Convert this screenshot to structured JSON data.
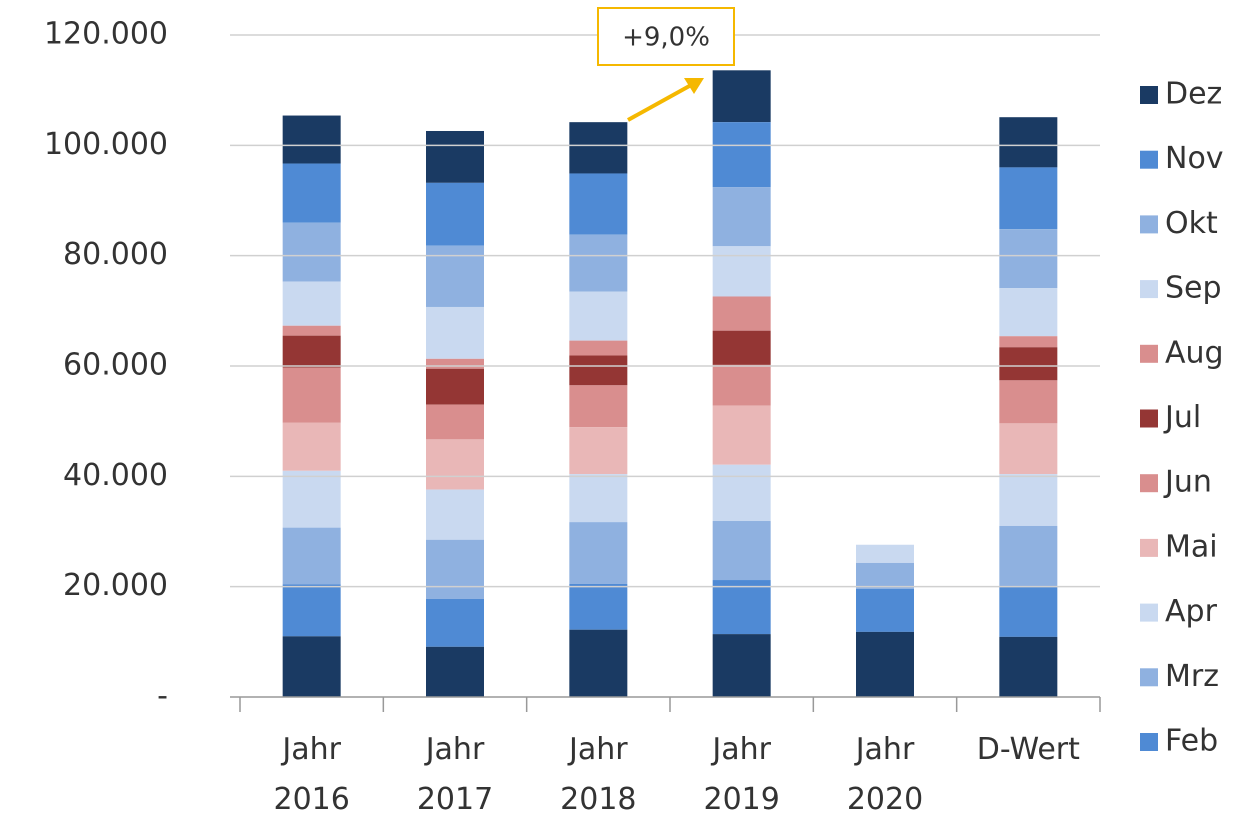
{
  "chart_data": {
    "type": "stacked_bar",
    "categories": [
      "Jahr 2016",
      "Jahr 2017",
      "Jahr 2018",
      "Jahr 2019",
      "Jahr 2020",
      "D-Wert"
    ],
    "series": [
      {
        "name": null,
        "color": "#1a3a63",
        "values": [
          11000,
          9100,
          12200,
          11400,
          11800,
          10900
        ]
      },
      {
        "name": "Feb",
        "color": "#4f8ad4",
        "values": [
          9400,
          8700,
          8300,
          9800,
          7800,
          9200
        ]
      },
      {
        "name": "Mrz",
        "color": "#8fb1e0",
        "values": [
          10300,
          10700,
          11200,
          10700,
          4700,
          10900
        ]
      },
      {
        "name": "Apr",
        "color": "#c9d9f0",
        "values": [
          10300,
          9100,
          8700,
          10200,
          3300,
          9400
        ]
      },
      {
        "name": "Mai",
        "color": "#e9b7b7",
        "values": [
          8700,
          9100,
          8500,
          10700,
          null,
          9200
        ]
      },
      {
        "name": "Jun",
        "color": "#d98e8e",
        "values": [
          10000,
          6300,
          7600,
          7400,
          null,
          7800
        ]
      },
      {
        "name": "Jul",
        "color": "#943634",
        "values": [
          5800,
          6500,
          5400,
          6200,
          null,
          6000
        ]
      },
      {
        "name": "Aug",
        "color": "#d98e8e",
        "values": [
          1800,
          1800,
          2700,
          6200,
          null,
          2000
        ]
      },
      {
        "name": "Sep",
        "color": "#c9d9f0",
        "values": [
          8000,
          9400,
          8900,
          9100,
          null,
          8700
        ]
      },
      {
        "name": "Okt",
        "color": "#8fb1e0",
        "values": [
          10700,
          11100,
          10300,
          10700,
          null,
          10700
        ]
      },
      {
        "name": "Nov",
        "color": "#4f8ad4",
        "values": [
          10700,
          11400,
          11100,
          11800,
          null,
          11200
        ]
      },
      {
        "name": "Dez",
        "color": "#1a3a63",
        "values": [
          8700,
          9400,
          9300,
          9400,
          null,
          9100
        ]
      }
    ],
    "ylim": [
      0,
      120000
    ],
    "yticks": [
      {
        "value": 0,
        "label": "-"
      },
      {
        "value": 20000,
        "label": "20.000"
      },
      {
        "value": 40000,
        "label": "40.000"
      },
      {
        "value": 60000,
        "label": "60.000"
      },
      {
        "value": 80000,
        "label": "80.000"
      },
      {
        "value": 100000,
        "label": "100.000"
      },
      {
        "value": 120000,
        "label": "120.000"
      }
    ],
    "grid": true,
    "annotation": "+9,0%",
    "legend": "right"
  }
}
